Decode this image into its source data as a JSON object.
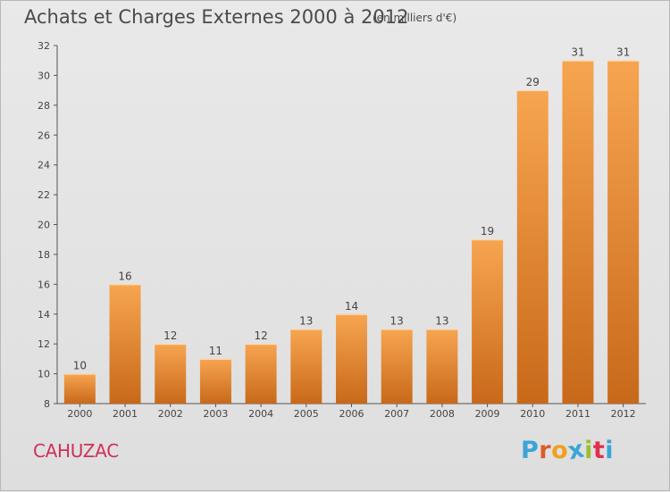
{
  "header": {
    "title": "Achats et Charges Externes 2000 à 2012",
    "subtitle": "(en milliers d'€)"
  },
  "footer": {
    "commune": "CAHUZAC",
    "logo": {
      "letters": [
        "P",
        "r",
        "o",
        "x",
        "i",
        "t",
        "i"
      ],
      "colors": [
        "#3aa5d8",
        "#e05a2a",
        "#f0a020",
        "#3aa5d8",
        "#9ac030",
        "#e03050",
        "#3aa5d8"
      ]
    }
  },
  "colors": {
    "bar_light": "#f7a550",
    "bar_dark": "#c8691a",
    "commune": "#d0305a",
    "text": "#4a4a4a"
  },
  "chart_data": {
    "type": "bar",
    "title": "Achats et Charges Externes 2000 à 2012",
    "subtitle": "(en milliers d'€)",
    "categories": [
      "2000",
      "2001",
      "2002",
      "2003",
      "2004",
      "2005",
      "2006",
      "2007",
      "2008",
      "2009",
      "2010",
      "2011",
      "2012"
    ],
    "values": [
      10,
      16,
      12,
      11,
      12,
      13,
      14,
      13,
      13,
      19,
      29,
      31,
      31
    ],
    "ylim": [
      8,
      32
    ],
    "yticks": [
      8,
      10,
      12,
      14,
      16,
      18,
      20,
      22,
      24,
      26,
      28,
      30,
      32
    ],
    "grid": false,
    "legend": "none"
  }
}
